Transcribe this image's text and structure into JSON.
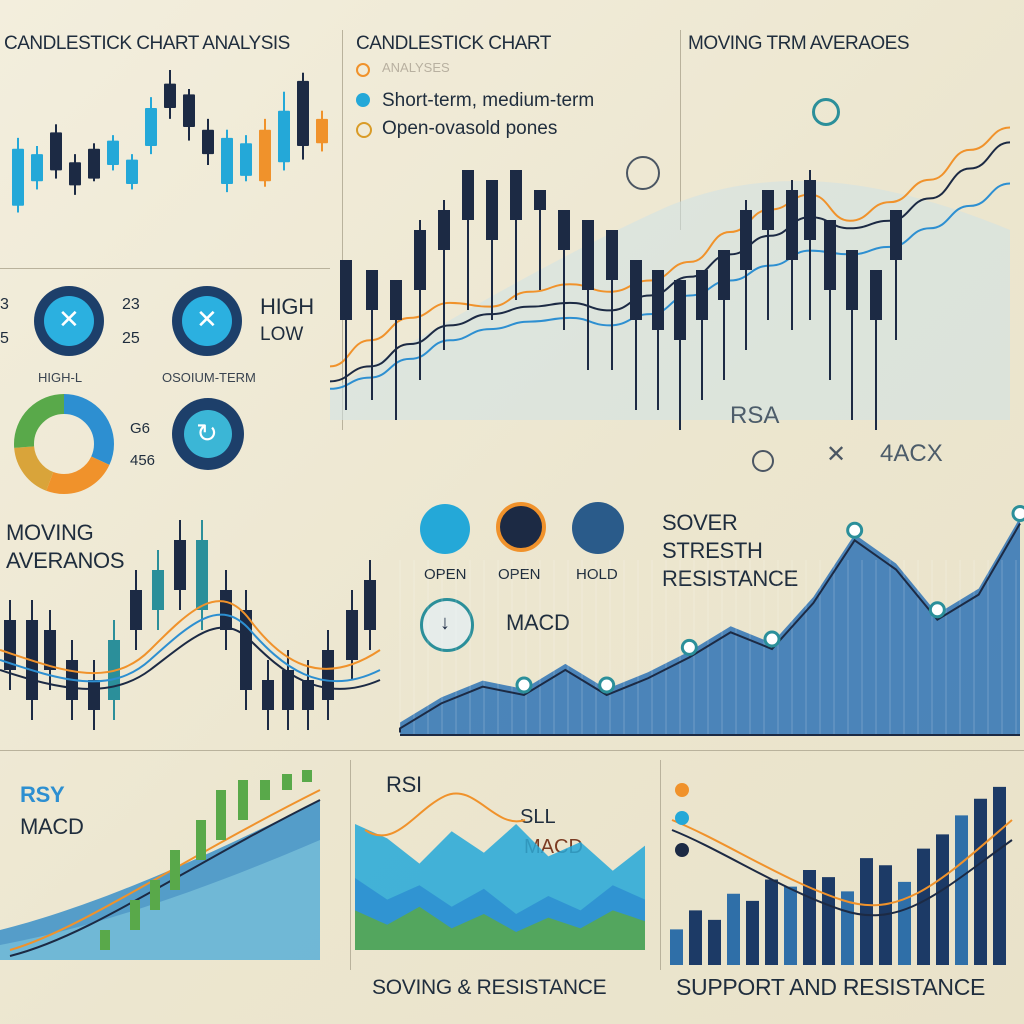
{
  "titles": {
    "p1": "CANDLESTICK CHART ANALYSIS",
    "p2": "CANDLESTICK CHART",
    "p3": "MOVING TRM AVERAOES",
    "rsa": "RSA",
    "acx": "4ACX",
    "strength": [
      "SOVER",
      "STRESTH",
      "RESISTANCE"
    ],
    "macd_mid": "MACD",
    "moving": [
      "MOVING",
      "AVERANOS"
    ],
    "rsy": "RSY",
    "macd_left": "MACD",
    "rsi": "RSI",
    "sll": "SLL",
    "macd_center": "MACD",
    "bottom_mid": "SOVING & RESISTANCE",
    "bottom_right": "SUPPORT AND RESISTANCE"
  },
  "legend": {
    "analyses": "ANALYSES",
    "item1": "Short-term, medium-term",
    "item2": "Open-ovasold pones"
  },
  "stats": {
    "n1": "23",
    "n2": "25",
    "n3": "G6",
    "n4": "456",
    "edge1": "3",
    "edge2": "5",
    "high": "HIGH",
    "low": "LOW",
    "label_left": "HIGH-L",
    "label_mid": "OSOIUM-TERM"
  },
  "icon_row": [
    "OPEN",
    "OPEN",
    "HOLD"
  ],
  "icons": [
    "close-icon",
    "close-icon",
    "refresh-icon",
    "down-arrow-icon",
    "target-icon"
  ],
  "colors": {
    "navy": "#1c2a44",
    "blue": "#2d8fd1",
    "cyan": "#24a8d8",
    "orange": "#f0922b",
    "green": "#59a94a",
    "teal": "#2b8f9a"
  },
  "chart_data": [
    {
      "type": "candlestick",
      "title": "CANDLESTICK CHART ANALYSIS",
      "candles": [
        {
          "o": 40,
          "c": 82,
          "h": 90,
          "l": 35,
          "color": "cyan"
        },
        {
          "o": 58,
          "c": 78,
          "h": 84,
          "l": 52,
          "color": "cyan"
        },
        {
          "o": 66,
          "c": 94,
          "h": 100,
          "l": 60,
          "color": "navy"
        },
        {
          "o": 72,
          "c": 55,
          "h": 78,
          "l": 48,
          "color": "navy"
        },
        {
          "o": 60,
          "c": 82,
          "h": 86,
          "l": 58,
          "color": "navy"
        },
        {
          "o": 70,
          "c": 88,
          "h": 92,
          "l": 66,
          "color": "cyan"
        },
        {
          "o": 56,
          "c": 74,
          "h": 78,
          "l": 52,
          "color": "cyan"
        },
        {
          "o": 84,
          "c": 112,
          "h": 120,
          "l": 78,
          "color": "cyan"
        },
        {
          "o": 112,
          "c": 130,
          "h": 140,
          "l": 104,
          "color": "navy"
        },
        {
          "o": 98,
          "c": 122,
          "h": 126,
          "l": 88,
          "color": "navy"
        },
        {
          "o": 78,
          "c": 96,
          "h": 104,
          "l": 70,
          "color": "navy"
        },
        {
          "o": 56,
          "c": 90,
          "h": 96,
          "l": 50,
          "color": "cyan"
        },
        {
          "o": 62,
          "c": 86,
          "h": 92,
          "l": 58,
          "color": "cyan"
        },
        {
          "o": 58,
          "c": 96,
          "h": 104,
          "l": 54,
          "color": "orange"
        },
        {
          "o": 72,
          "c": 110,
          "h": 124,
          "l": 66,
          "color": "cyan"
        },
        {
          "o": 84,
          "c": 132,
          "h": 138,
          "l": 74,
          "color": "navy"
        },
        {
          "o": 86,
          "c": 104,
          "h": 110,
          "l": 80,
          "color": "orange"
        }
      ]
    },
    {
      "type": "line",
      "title": "MOVING TRM AVERAOES",
      "series": [
        {
          "name": "Short-term",
          "color": "orange",
          "values": [
            18,
            32,
            44,
            52,
            50,
            58,
            62,
            58,
            64,
            74,
            90,
            102,
            110,
            96,
            106,
            118,
            134,
            146
          ]
        },
        {
          "name": "Medium-term",
          "color": "navy",
          "values": [
            10,
            18,
            30,
            40,
            46,
            50,
            52,
            48,
            56,
            66,
            78,
            88,
            98,
            92,
            96,
            108,
            124,
            138
          ]
        },
        {
          "name": "",
          "color": "blue",
          "values": [
            6,
            12,
            22,
            32,
            38,
            42,
            44,
            40,
            46,
            56,
            64,
            72,
            80,
            78,
            82,
            92,
            104,
            116
          ]
        }
      ]
    },
    {
      "type": "area",
      "title": "SOVER STRESTH RESISTANCE",
      "values": [
        6,
        18,
        26,
        22,
        34,
        22,
        30,
        40,
        52,
        44,
        66,
        96,
        82,
        58,
        70,
        104
      ],
      "markers": [
        20,
        30,
        50,
        76,
        96,
        70,
        100
      ]
    },
    {
      "type": "area",
      "title": "RSI",
      "series": [
        {
          "name": "",
          "color": "cyan",
          "values": [
            70,
            62,
            48,
            66,
            54,
            70,
            52,
            60,
            44,
            58
          ]
        },
        {
          "name": "",
          "color": "blue",
          "values": [
            40,
            28,
            36,
            24,
            34,
            20,
            30,
            22,
            36,
            28
          ]
        },
        {
          "name": "",
          "color": "green",
          "values": [
            22,
            14,
            24,
            12,
            20,
            10,
            18,
            12,
            22,
            16
          ]
        }
      ]
    },
    {
      "type": "bar",
      "title": "SUPPORT AND RESISTANCE",
      "values": [
        30,
        46,
        38,
        60,
        54,
        72,
        66,
        80,
        74,
        62,
        90,
        84,
        70,
        98,
        110,
        126,
        140,
        150
      ]
    }
  ]
}
